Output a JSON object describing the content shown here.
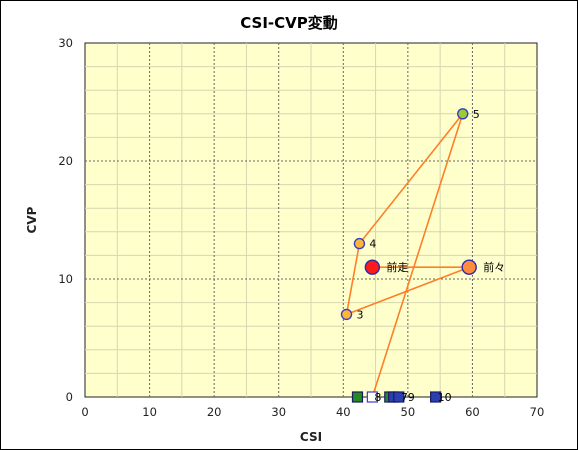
{
  "chart_data": {
    "type": "scatter",
    "title": "CSI-CVP変動",
    "xlabel": "CSI",
    "ylabel": "CVP",
    "xlim": [
      0,
      70
    ],
    "ylim": [
      0,
      30
    ],
    "x_ticks": [
      0,
      10,
      20,
      30,
      40,
      50,
      60,
      70
    ],
    "y_ticks": [
      0,
      10,
      20,
      30
    ],
    "grid": true,
    "colors": {
      "plot_bg": "#ffffcc",
      "line": "#ff7f27",
      "marker_orange": "#ffb732",
      "marker_border": "#3c3cc8",
      "latest": "#ff1a1a",
      "previous": "#ff8c3c",
      "green_square": "#228b22",
      "blue_square": "#2a3fb0",
      "open_square": "#ffffff"
    },
    "path_points": [
      {
        "label": "前走",
        "x": 44.5,
        "y": 11
      },
      {
        "label": "前々",
        "x": 59.5,
        "y": 11
      },
      {
        "label": "3",
        "x": 40.5,
        "y": 7
      },
      {
        "label": "4",
        "x": 42.5,
        "y": 13
      },
      {
        "label": "5",
        "x": 58.5,
        "y": 24
      },
      {
        "label": "",
        "x": 44.5,
        "y": 0
      }
    ],
    "circle_points": [
      {
        "label": "5",
        "x": 58.5,
        "y": 24,
        "kind": "small"
      },
      {
        "label": "4",
        "x": 42.5,
        "y": 13,
        "kind": "small"
      },
      {
        "label": "3",
        "x": 40.5,
        "y": 7,
        "kind": "small"
      },
      {
        "label": "前走",
        "x": 44.5,
        "y": 11,
        "kind": "latest"
      },
      {
        "label": "前々",
        "x": 59.5,
        "y": 11,
        "kind": "previous"
      }
    ],
    "square_points": [
      {
        "label": "",
        "x": 42.2,
        "y": 0,
        "kind": "green"
      },
      {
        "label": "8",
        "x": 44.5,
        "y": 0,
        "kind": "open"
      },
      {
        "label": "",
        "x": 47.2,
        "y": 0,
        "kind": "green"
      },
      {
        "label": "",
        "x": 47.8,
        "y": 0,
        "kind": "blue"
      },
      {
        "label": "79",
        "x": 48.6,
        "y": 0,
        "kind": "blue"
      },
      {
        "label": "10",
        "x": 54.3,
        "y": 0,
        "kind": "blue"
      }
    ]
  }
}
